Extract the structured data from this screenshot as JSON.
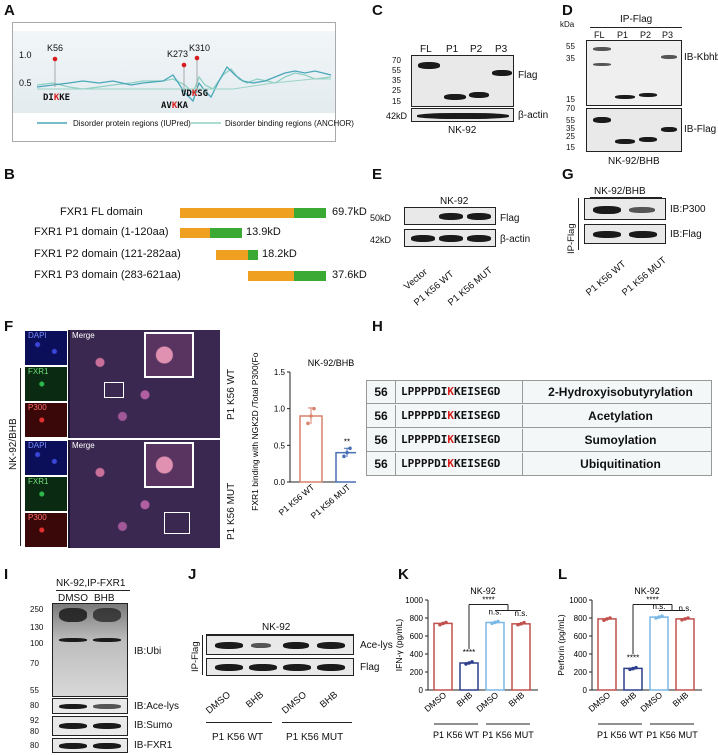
{
  "panels": {
    "A": {
      "label": "A",
      "ytick_high": "1.0",
      "ytick_low": "0.5",
      "sites": [
        {
          "name": "K56",
          "seq_pre": "DI",
          "seq_k": "K",
          "seq_post": "KE"
        },
        {
          "name": "K273",
          "seq_pre": "AV",
          "seq_k": "K",
          "seq_post": "KA"
        },
        {
          "name": "K310",
          "seq_pre": "VD",
          "seq_k": "K",
          "seq_post": "SG"
        }
      ],
      "legend": [
        "Disorder protein regions (IUPred)",
        "Disorder binding regions (ANCHOR)"
      ],
      "colors": {
        "iupred": "#4aa7b8",
        "anchor": "#8fd0c4",
        "site": "#d81b1b"
      }
    },
    "B": {
      "label": "B",
      "domains": [
        {
          "name": "FXR1 FL domain",
          "mw": "69.7kD"
        },
        {
          "name": "FXR1 P1 domain (1-120aa)",
          "mw": "13.9kD"
        },
        {
          "name": "FXR1 P2 domain (121-282aa)",
          "mw": "18.2kD"
        },
        {
          "name": "FXR1 P3 domain (283-621aa)",
          "mw": "37.6kD"
        }
      ]
    },
    "C": {
      "label": "C",
      "lanes": [
        "FL",
        "P1",
        "P2",
        "P3"
      ],
      "markers": [
        "70",
        "55",
        "35",
        "25",
        "15"
      ],
      "actin_marker": "42kD",
      "blot1": "Flag",
      "blot2": "β-actin",
      "cell": "NK-92"
    },
    "D": {
      "label": "D",
      "unit": "kDa",
      "ip": "IP-Flag",
      "lanes": [
        "FL",
        "P1",
        "P2",
        "P3"
      ],
      "markers_top": [
        "55",
        "35",
        "15",
        "70"
      ],
      "markers_bottom": [
        "55",
        "35",
        "25",
        "15"
      ],
      "blot1": "IB-Kbhb",
      "blot2": "IB-Flag",
      "cell": "NK-92/BHB"
    },
    "E": {
      "label": "E",
      "cell": "NK-92",
      "m1": "50kD",
      "m2": "42kD",
      "blot1": "Flag",
      "blot2": "β-actin",
      "lanes": [
        "Vector",
        "P1 K56 WT",
        "P1 K56 MUT"
      ]
    },
    "G": {
      "label": "G",
      "cell": "NK-92/BHB",
      "ip": "IP-Flag",
      "blot1": "IB:P300",
      "blot2": "IB:Flag",
      "lanes": [
        "P1 K56 WT",
        "P1 K56 MUT"
      ]
    },
    "F": {
      "label": "F",
      "side": "NK-92/BHB",
      "channels": [
        "DAPI",
        "FXR1",
        "P300"
      ],
      "merge": "Merge",
      "rows": [
        "P1 K56 WT",
        "P1 K56 MUT"
      ]
    },
    "H": {
      "label": "H",
      "rows": [
        {
          "num": "56",
          "seq_pre": "LPPPPDI",
          "seq_k": "K",
          "seq_post": "KEISEGD",
          "mod": "2-Hydroxyisobutyrylation"
        },
        {
          "num": "56",
          "seq_pre": "LPPPPDI",
          "seq_k": "K",
          "seq_post": "KEISEGD",
          "mod": "Acetylation"
        },
        {
          "num": "56",
          "seq_pre": "LPPPPDI",
          "seq_k": "K",
          "seq_post": "KEISEGD",
          "mod": "Sumoylation"
        },
        {
          "num": "56",
          "seq_pre": "LPPPPDI",
          "seq_k": "K",
          "seq_post": "KEISEGD",
          "mod": "Ubiquitination"
        }
      ]
    },
    "I": {
      "label": "I",
      "header": "NK-92,IP-FXR1",
      "lanes": [
        "DMSO",
        "BHB"
      ],
      "markers_ubi": [
        "250",
        "130",
        "100",
        "70",
        "55"
      ],
      "m_ace": "80",
      "m_sumo1": "92",
      "m_sumo2": "80",
      "m_fxr1": "80",
      "blots": [
        "IB:Ubi",
        "IB:Ace-lys",
        "IB:Sumo",
        "IB-FXR1"
      ]
    },
    "J": {
      "label": "J",
      "cell": "NK-92",
      "ip": "IP-Flag",
      "blot1": "Ace-lys",
      "blot2": "Flag",
      "lanes": [
        "DMSO",
        "BHB",
        "DMSO",
        "BHB"
      ],
      "groups": [
        "P1 K56 WT",
        "P1 K56 MUT"
      ]
    },
    "K": {
      "label": "K"
    },
    "L": {
      "label": "L"
    }
  },
  "chart_data": [
    {
      "type": "bar",
      "panel": "F",
      "title": "NK-92/BHB",
      "ylabel": "FXR1 binding with NGK2D /Total P300(Fold)",
      "categories": [
        "P1 K56 WT",
        "P1 K56 MUT"
      ],
      "values": [
        0.9,
        0.4
      ],
      "errors": [
        0.11,
        0.06
      ],
      "points": [
        [
          0.8,
          0.9,
          1.0
        ],
        [
          0.35,
          0.4,
          0.46
        ]
      ],
      "yticks": [
        "0.0",
        "0.5",
        "1.0",
        "1.5"
      ],
      "ylim": [
        0,
        1.5
      ],
      "significance": [
        "",
        "**"
      ],
      "colors": [
        "#d9826c",
        "#4a6fb4"
      ]
    },
    {
      "type": "bar",
      "panel": "K",
      "title": "NK-92",
      "ylabel": "IFN-γ (pg/mL)",
      "categories": [
        "DMSO",
        "BHB",
        "DMSO",
        "BHB"
      ],
      "groups": [
        "P1 K56 WT",
        "P1 K56 MUT"
      ],
      "values": [
        740,
        300,
        750,
        735
      ],
      "points": [
        [
          725,
          740,
          750
        ],
        [
          290,
          300,
          312
        ],
        [
          742,
          752,
          760
        ],
        [
          725,
          735,
          748
        ]
      ],
      "yticks": [
        "0",
        "200",
        "400",
        "600",
        "800",
        "1000"
      ],
      "ylim": [
        0,
        1000
      ],
      "significance": [
        "",
        "****",
        "n.s.",
        "n.s."
      ],
      "bracket": "****",
      "colors": [
        "#c0504d",
        "#2c3e8c",
        "#7ab8e6",
        "#c0504d"
      ]
    },
    {
      "type": "bar",
      "panel": "L",
      "title": "NK-92",
      "ylabel": "Perforin (pg/mL)",
      "categories": [
        "DMSO",
        "BHB",
        "DMSO",
        "BHB"
      ],
      "groups": [
        "P1 K56 WT",
        "P1 K56 MUT"
      ],
      "values": [
        790,
        240,
        810,
        790
      ],
      "points": [
        [
          775,
          790,
          800
        ],
        [
          230,
          238,
          248
        ],
        [
          800,
          810,
          820
        ],
        [
          780,
          790,
          800
        ]
      ],
      "yticks": [
        "0",
        "200",
        "400",
        "600",
        "800",
        "1000"
      ],
      "ylim": [
        0,
        1000
      ],
      "significance": [
        "",
        "****",
        "n.s.",
        "n.s."
      ],
      "bracket": "****",
      "colors": [
        "#c0504d",
        "#2c3e8c",
        "#7ab8e6",
        "#c0504d"
      ]
    }
  ]
}
